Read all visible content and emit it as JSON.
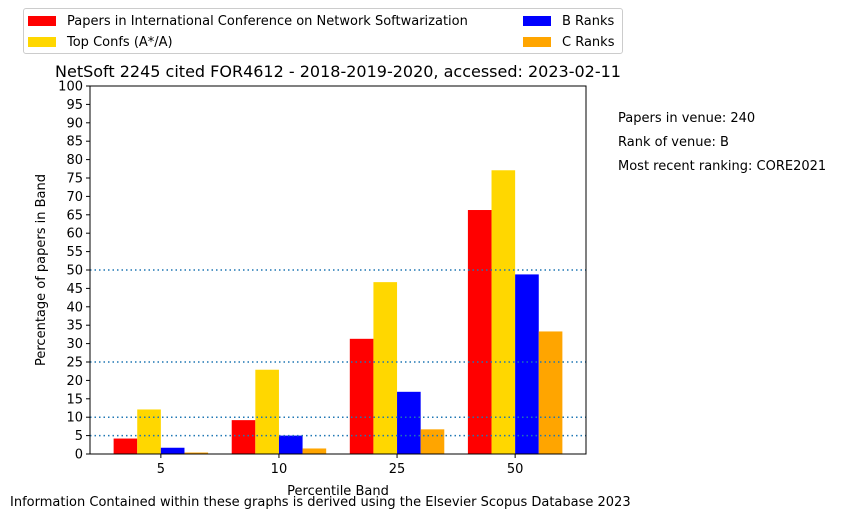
{
  "chart_data": {
    "type": "bar",
    "title": "NetSoft 2245 cited FOR4612 - 2018-2019-2020, accessed: 2023-02-11",
    "xlabel": "Percentile Band",
    "ylabel": "Percentage of papers in Band",
    "categories": [
      "5",
      "10",
      "25",
      "50"
    ],
    "ylim": [
      0,
      100
    ],
    "yticks": [
      "0",
      "5",
      "10",
      "15",
      "20",
      "25",
      "30",
      "35",
      "40",
      "45",
      "50",
      "55",
      "60",
      "65",
      "70",
      "75",
      "80",
      "85",
      "90",
      "95",
      "100"
    ],
    "reference_lines": [
      5,
      10,
      25,
      50
    ],
    "grid": false,
    "legend_position": "top-left, above plot",
    "series": [
      {
        "name": "Papers in International Conference on Network Softwarization",
        "color": "#ff0000",
        "values": [
          4.2,
          9.2,
          31.3,
          66.3
        ]
      },
      {
        "name": "Top Confs (A*/A)",
        "color": "#ffd700",
        "values": [
          12.1,
          22.9,
          46.7,
          77.1
        ]
      },
      {
        "name": "B Ranks",
        "color": "#0000ff",
        "values": [
          1.7,
          5.0,
          16.9,
          48.8
        ]
      },
      {
        "name": "C Ranks",
        "color": "#ffa500",
        "values": [
          0.4,
          1.5,
          6.7,
          33.3
        ]
      }
    ]
  },
  "side_notes": {
    "papers": "Papers in venue: 240",
    "rank": "Rank of venue: B",
    "ranking": "Most recent ranking: CORE2021"
  },
  "footer": "Information Contained within these graphs is derived using the Elsevier Scopus Database 2023"
}
